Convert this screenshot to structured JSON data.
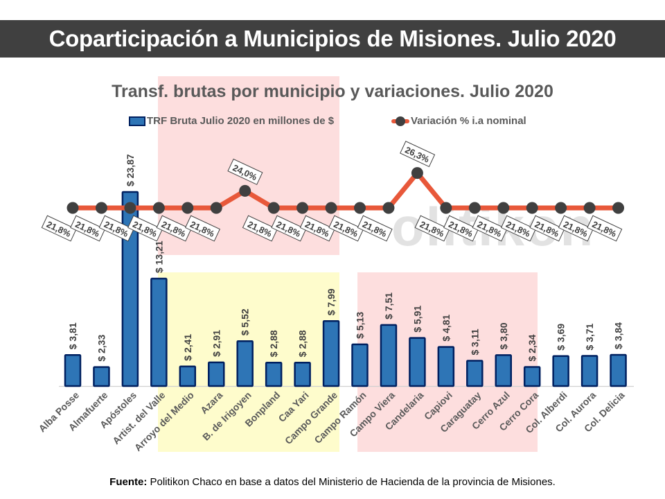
{
  "header": {
    "title": "Coparticipación a Municipios de Misiones. Julio 2020"
  },
  "watermark": "olitikon",
  "footer": {
    "label": "Fuente:",
    "text": " Politikon Chaco en base a datos del Ministerio de Hacienda de la provincia de Misiones."
  },
  "colors": {
    "bar_fill": "#2e75b6",
    "bar_border": "#002060",
    "line": "#e8583a",
    "marker": "#404040",
    "header_bg": "#404040",
    "highlight_pink": "#fddede",
    "highlight_yellow": "#fefccc"
  },
  "chart_data": {
    "type": "bar",
    "title": "Transf. brutas por municipio y variaciones. Julio 2020",
    "xlabel": "",
    "ylabel": "",
    "grid": false,
    "legend_position": "top",
    "categories": [
      "Alba Posse",
      "Almafuerte",
      "Apóstoles",
      "Artist. del Valle",
      "Arroyo del Medio",
      "Azara",
      "B. de Irigoyen",
      "Bonpland",
      "Caa Yari",
      "Campo Grande",
      "Campo Ramón",
      "Campo Viera",
      "Candelaria",
      "Capiovi",
      "Caraguatay",
      "Cerro Azul",
      "Cerro Cora",
      "Col. Alberdi",
      "Col. Aurora",
      "Col. Delicia"
    ],
    "series": [
      {
        "name": "TRF Bruta Julio 2020 en millones de $",
        "type": "bar",
        "values": [
          3.81,
          2.33,
          23.87,
          13.21,
          2.41,
          2.91,
          5.52,
          2.88,
          2.88,
          7.99,
          5.13,
          7.51,
          5.91,
          4.81,
          3.11,
          3.8,
          2.34,
          3.69,
          3.71,
          3.84
        ],
        "labels": [
          "$ 3,81",
          "$ 2,33",
          "$ 23,87",
          "$ 13,21",
          "$ 2,41",
          "$ 2,91",
          "$ 5,52",
          "$ 2,88",
          "$ 2,88",
          "$ 7,99",
          "$ 5,13",
          "$ 7,51",
          "$ 5,91",
          "$ 4,81",
          "$ 3,11",
          "$ 3,80",
          "$ 2,34",
          "$ 3,69",
          "$ 3,71",
          "$ 3,84"
        ]
      },
      {
        "name": "Variación % i.a nominal",
        "type": "line",
        "values": [
          21.8,
          21.8,
          21.8,
          21.8,
          21.8,
          21.8,
          24.0,
          21.8,
          21.8,
          21.8,
          21.8,
          21.8,
          26.3,
          21.8,
          21.8,
          21.8,
          21.8,
          21.8,
          21.8,
          21.8
        ],
        "labels": [
          "21,8%",
          "21,8%",
          "21,8%",
          "21,8%",
          "21,8%",
          "21,8%",
          "24,0%",
          "21,8%",
          "21,8%",
          "21,8%",
          "21,8%",
          "21,8%",
          "26,3%",
          "21,8%",
          "21,8%",
          "21,8%",
          "21,8%",
          "21,8%",
          "21,8%",
          "21,8%"
        ]
      }
    ]
  }
}
